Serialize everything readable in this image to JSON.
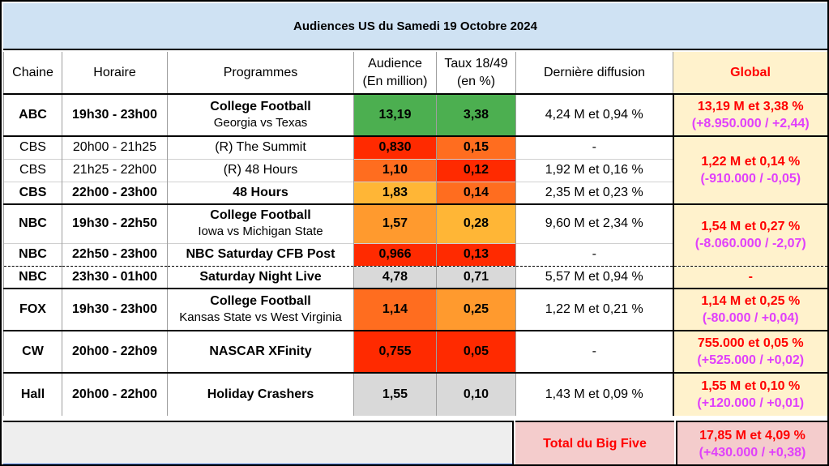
{
  "title": "Audiences US du Samedi 19 Octobre 2024",
  "headers": {
    "chaine": "Chaine",
    "horaire": "Horaire",
    "programmes": "Programmes",
    "audience_l1": "Audience",
    "audience_l2": "(En million)",
    "taux_l1": "Taux 18/49",
    "taux_l2": "(en %)",
    "derniere": "Dernière diffusion",
    "global": "Global"
  },
  "rows": [
    {
      "chaine": "ABC",
      "horaire": "19h30 - 23h00",
      "prog": "College Football",
      "prog_sub": "Georgia vs Texas",
      "audience": "13,19",
      "taux": "3,38",
      "derniere": "4,24 M et 0,94 %"
    },
    {
      "chaine": "CBS",
      "horaire": "20h00 - 21h25",
      "prog": "(R) The Summit",
      "audience": "0,830",
      "taux": "0,15",
      "derniere": "-"
    },
    {
      "chaine": "CBS",
      "horaire": "21h25 - 22h00",
      "prog": "(R) 48 Hours",
      "audience": "1,10",
      "taux": "0,12",
      "derniere": "1,92 M et 0,16 %"
    },
    {
      "chaine": "CBS",
      "horaire": "22h00 - 23h00",
      "prog": "48 Hours",
      "audience": "1,83",
      "taux": "0,14",
      "derniere": "2,35 M et 0,23 %"
    },
    {
      "chaine": "NBC",
      "horaire": "19h30 - 22h50",
      "prog": "College Football",
      "prog_sub": "Iowa vs Michigan State",
      "audience": "1,57",
      "taux": "0,28",
      "derniere": "9,60 M et 2,34 %"
    },
    {
      "chaine": "NBC",
      "horaire": "22h50 - 23h00",
      "prog": "NBC Saturday CFB Post",
      "audience": "0,966",
      "taux": "0,13",
      "derniere": "-"
    },
    {
      "chaine": "NBC",
      "horaire": "23h30 - 01h00",
      "prog": "Saturday Night Live",
      "audience": "4,78",
      "taux": "0,71",
      "derniere": "5,57 M et 0,94 %"
    },
    {
      "chaine": "FOX",
      "horaire": "19h30 - 23h00",
      "prog": "College Football",
      "prog_sub": "Kansas State vs West Virginia",
      "audience": "1,14",
      "taux": "0,25",
      "derniere": "1,22 M et 0,21 %"
    },
    {
      "chaine": "CW",
      "horaire": "20h00 - 22h09",
      "prog": "NASCAR XFinity",
      "audience": "0,755",
      "taux": "0,05",
      "derniere": "-"
    },
    {
      "chaine": "Hall",
      "horaire": "20h00 - 22h00",
      "prog": "Holiday Crashers",
      "audience": "1,55",
      "taux": "0,10",
      "derniere": "1,43 M et 0,09 %"
    }
  ],
  "global": {
    "abc": {
      "val": "13,19 M et 3,38 %",
      "delta": "(+8.950.000 / +2,44)"
    },
    "cbs": {
      "val": "1,22 M et 0,14 %",
      "delta": "(-910.000 / -0,05)"
    },
    "nbc": {
      "val": "1,54 M et 0,27 %",
      "delta": "(-8.060.000 / -2,07)"
    },
    "snl": "-",
    "fox": {
      "val": "1,14 M et 0,25 %",
      "delta": "(-80.000 / +0,04)"
    },
    "cw": {
      "val": "755.000 et 0,05 %",
      "delta": "(+525.000 / +0,02)"
    },
    "hall": {
      "val": "1,55 M et 0,10 %",
      "delta": "(+120.000 / +0,01)"
    }
  },
  "footer": {
    "label": "Total du Big Five",
    "val": "17,85 M et 4,09 %",
    "delta": "(+430.000 / +0,38)"
  },
  "colors": {
    "title_bg": "#cfe2f3",
    "global_bg": "#fff2cc",
    "footer_bg": "#f4cccc",
    "global_text": "#ff0000",
    "delta_text": "#e040fb",
    "green": "#4caf50",
    "red": "#ff2a00",
    "orange": "#ff6d1f",
    "amber": "#ff9a2e",
    "yellow": "#ffb636",
    "grey": "#d9d9d9"
  }
}
